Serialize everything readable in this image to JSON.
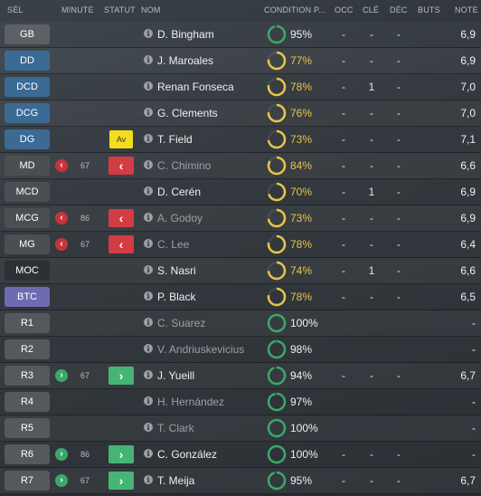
{
  "header": {
    "sel": "SÉL",
    "minute": "MINUTE",
    "statut": "STATUT",
    "nom": "NOM",
    "condition": "CONDITION P...",
    "occ": "OCC",
    "cle": "CLÉ",
    "dec": "DÉC",
    "buts": "BUTS",
    "note": "NOTE"
  },
  "colors": {
    "sub_out": "#d23d44",
    "sub_in": "#46b574",
    "warning_yellow": "#f2de1e",
    "condition_full": "#3aa86a",
    "condition_partial": "#e8c547"
  },
  "players": [
    {
      "pos": "GB",
      "pos_type": "gk",
      "minute": "",
      "sub": "",
      "status": "",
      "name": "D. Bingham",
      "active": true,
      "cond": "95%",
      "cond_value": 95,
      "occ": "-",
      "cle": "-",
      "dec": "-",
      "buts": "",
      "note": "6,9"
    },
    {
      "pos": "DD",
      "pos_type": "def",
      "minute": "",
      "sub": "",
      "status": "",
      "name": "J. Maroales",
      "active": true,
      "cond": "77%",
      "cond_value": 77,
      "occ": "-",
      "cle": "-",
      "dec": "-",
      "buts": "",
      "note": "6,9"
    },
    {
      "pos": "DCD",
      "pos_type": "def",
      "minute": "",
      "sub": "",
      "status": "",
      "name": "Renan Fonseca",
      "active": true,
      "cond": "78%",
      "cond_value": 78,
      "occ": "-",
      "cle": "1",
      "dec": "-",
      "buts": "",
      "note": "7,0"
    },
    {
      "pos": "DCG",
      "pos_type": "def",
      "minute": "",
      "sub": "",
      "status": "",
      "name": "G. Clements",
      "active": true,
      "cond": "76%",
      "cond_value": 76,
      "occ": "-",
      "cle": "-",
      "dec": "-",
      "buts": "",
      "note": "7,0"
    },
    {
      "pos": "DG",
      "pos_type": "def",
      "minute": "",
      "sub": "",
      "status": "Av",
      "name": "T. Field",
      "active": true,
      "cond": "73%",
      "cond_value": 73,
      "occ": "-",
      "cle": "-",
      "dec": "-",
      "buts": "",
      "note": "7,1"
    },
    {
      "pos": "MD",
      "pos_type": "mid",
      "minute": "67",
      "sub": "out",
      "status": "out",
      "name": "C. Chimino",
      "active": false,
      "cond": "84%",
      "cond_value": 84,
      "occ": "-",
      "cle": "-",
      "dec": "-",
      "buts": "",
      "note": "6,6"
    },
    {
      "pos": "MCD",
      "pos_type": "mid",
      "minute": "",
      "sub": "",
      "status": "",
      "name": "D. Cerén",
      "active": true,
      "cond": "70%",
      "cond_value": 70,
      "occ": "-",
      "cle": "1",
      "dec": "-",
      "buts": "",
      "note": "6,9"
    },
    {
      "pos": "MCG",
      "pos_type": "mid",
      "minute": "86",
      "sub": "out",
      "status": "out",
      "name": "A. Godoy",
      "active": false,
      "cond": "73%",
      "cond_value": 73,
      "occ": "-",
      "cle": "-",
      "dec": "-",
      "buts": "",
      "note": "6,9"
    },
    {
      "pos": "MG",
      "pos_type": "mid",
      "minute": "67",
      "sub": "out",
      "status": "out",
      "name": "C. Lee",
      "active": false,
      "cond": "78%",
      "cond_value": 78,
      "occ": "-",
      "cle": "-",
      "dec": "-",
      "buts": "",
      "note": "6,4"
    },
    {
      "pos": "MOC",
      "pos_type": "moc",
      "minute": "",
      "sub": "",
      "status": "",
      "name": "S. Nasri",
      "active": true,
      "cond": "74%",
      "cond_value": 74,
      "occ": "-",
      "cle": "1",
      "dec": "-",
      "buts": "",
      "note": "6,6"
    },
    {
      "pos": "BTC",
      "pos_type": "att",
      "minute": "",
      "sub": "",
      "status": "",
      "name": "P. Black",
      "active": true,
      "cond": "78%",
      "cond_value": 78,
      "occ": "-",
      "cle": "-",
      "dec": "-",
      "buts": "",
      "note": "6,5"
    },
    {
      "pos": "R1",
      "pos_type": "res",
      "minute": "",
      "sub": "",
      "status": "",
      "name": "C. Suarez",
      "active": false,
      "cond": "100%",
      "cond_value": 100,
      "occ": "",
      "cle": "",
      "dec": "",
      "buts": "",
      "note": "-"
    },
    {
      "pos": "R2",
      "pos_type": "res",
      "minute": "",
      "sub": "",
      "status": "",
      "name": "V. Andriuskevicius",
      "active": false,
      "cond": "98%",
      "cond_value": 98,
      "occ": "",
      "cle": "",
      "dec": "",
      "buts": "",
      "note": "-"
    },
    {
      "pos": "R3",
      "pos_type": "res",
      "minute": "67",
      "sub": "in",
      "status": "in",
      "name": "J. Yueill",
      "active": true,
      "cond": "94%",
      "cond_value": 94,
      "occ": "-",
      "cle": "-",
      "dec": "-",
      "buts": "",
      "note": "6,7"
    },
    {
      "pos": "R4",
      "pos_type": "res",
      "minute": "",
      "sub": "",
      "status": "",
      "name": "H. Hernández",
      "active": false,
      "cond": "97%",
      "cond_value": 97,
      "occ": "",
      "cle": "",
      "dec": "",
      "buts": "",
      "note": "-"
    },
    {
      "pos": "R5",
      "pos_type": "res",
      "minute": "",
      "sub": "",
      "status": "",
      "name": "T. Clark",
      "active": false,
      "cond": "100%",
      "cond_value": 100,
      "occ": "",
      "cle": "",
      "dec": "",
      "buts": "",
      "note": "-"
    },
    {
      "pos": "R6",
      "pos_type": "res",
      "minute": "86",
      "sub": "in",
      "status": "in",
      "name": "C. González",
      "active": true,
      "cond": "100%",
      "cond_value": 100,
      "occ": "-",
      "cle": "-",
      "dec": "-",
      "buts": "",
      "note": "-"
    },
    {
      "pos": "R7",
      "pos_type": "res",
      "minute": "67",
      "sub": "in",
      "status": "in",
      "name": "T. Meija",
      "active": true,
      "cond": "95%",
      "cond_value": 95,
      "occ": "-",
      "cle": "-",
      "dec": "-",
      "buts": "",
      "note": "6,7"
    }
  ]
}
